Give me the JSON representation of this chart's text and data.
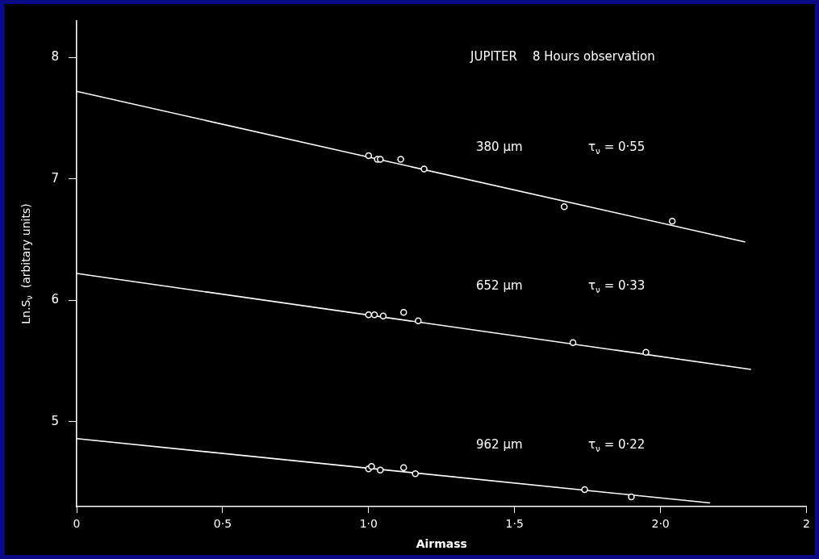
{
  "chart_data": {
    "type": "scatter",
    "title": "JUPITER    8 Hours observation",
    "xlabel": "Airmass",
    "ylabel": "Ln.S$_{ν}$  (arbitary units)",
    "xlim": [
      0,
      2.5
    ],
    "xticks": [
      0,
      {
        "value": 0.5,
        "label": "0·5"
      },
      {
        "value": 1,
        "label": "1·0"
      },
      {
        "value": 1.5,
        "label": "1·5"
      },
      {
        "value": 2,
        "label": "2·0"
      },
      {
        "value": 2.5,
        "label": "2"
      }
    ],
    "ylim": [
      4.3,
      8.3
    ],
    "yticks": [
      5,
      6,
      7,
      8
    ],
    "grid": false,
    "legend": false,
    "line_style": "solid",
    "series": [
      {
        "marker": "circle",
        "color": "#ffffff",
        "x": [
          1.0,
          1.03,
          1.04,
          1.11,
          1.19,
          1.67,
          2.04
        ],
        "values": [
          7.19,
          7.16,
          7.16,
          7.16,
          7.08,
          6.77,
          6.65
        ]
      },
      {
        "type": "line",
        "marker": "none",
        "color": "#ffffff",
        "x": [
          0,
          2.29
        ],
        "values": [
          7.72,
          6.48
        ]
      },
      {
        "marker": "circle",
        "color": "#ffffff",
        "x": [
          1.0,
          1.02,
          1.05,
          1.12,
          1.17,
          1.7,
          1.95
        ],
        "values": [
          5.88,
          5.88,
          5.87,
          5.9,
          5.83,
          5.65,
          5.57
        ]
      },
      {
        "type": "line",
        "marker": "none",
        "color": "#ffffff",
        "x": [
          0,
          2.31
        ],
        "values": [
          6.22,
          5.43
        ]
      },
      {
        "marker": "circle",
        "color": "#ffffff",
        "x": [
          1.0,
          1.01,
          1.04,
          1.12,
          1.16,
          1.74,
          1.9
        ],
        "values": [
          4.61,
          4.63,
          4.6,
          4.62,
          4.57,
          4.44,
          4.38
        ]
      },
      {
        "type": "line",
        "marker": "none",
        "color": "#ffffff",
        "x": [
          0,
          2.17
        ],
        "values": [
          4.86,
          4.33
        ]
      }
    ],
    "annotations": [
      "380 μm",
      "τ$_{ν}$ = 0·55",
      "652 μm",
      "τ$_{ν}$ = 0·33",
      "962 μm",
      "τ$_{ν}$ = 0·22"
    ]
  }
}
